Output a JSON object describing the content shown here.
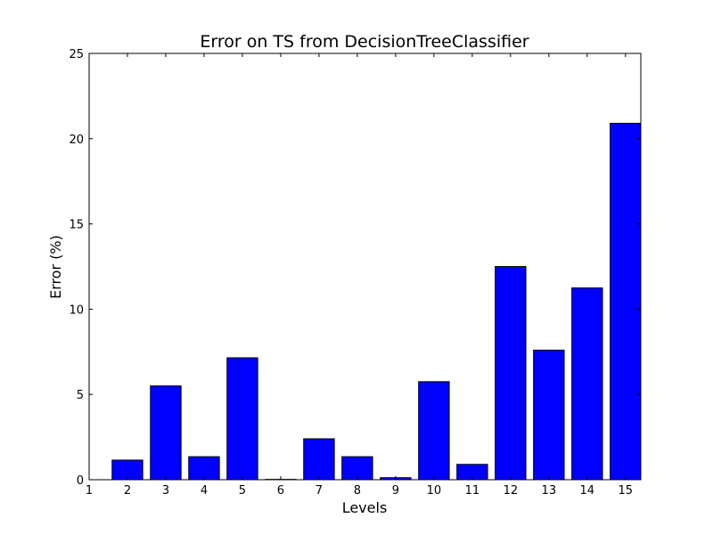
{
  "chart_data": {
    "type": "bar",
    "title": "Error on TS from DecisionTreeClassifier",
    "xlabel": "Levels",
    "ylabel": "Error (%)",
    "xlim": [
      1,
      15.4
    ],
    "ylim": [
      0,
      25
    ],
    "xticks": [
      "1",
      "2",
      "3",
      "4",
      "5",
      "6",
      "7",
      "8",
      "9",
      "10",
      "11",
      "12",
      "13",
      "14",
      "15"
    ],
    "yticks": [
      "0",
      "5",
      "10",
      "15",
      "20",
      "25"
    ],
    "categories": [
      "2",
      "3",
      "4",
      "5",
      "6",
      "7",
      "8",
      "9",
      "10",
      "11",
      "12",
      "13",
      "14",
      "15"
    ],
    "values": [
      1.15,
      5.5,
      1.35,
      7.15,
      0.02,
      2.4,
      1.35,
      0.12,
      5.75,
      0.9,
      12.5,
      7.6,
      11.25,
      20.9
    ],
    "bar_color": "#0000ff",
    "grid": false,
    "legend": "none"
  }
}
